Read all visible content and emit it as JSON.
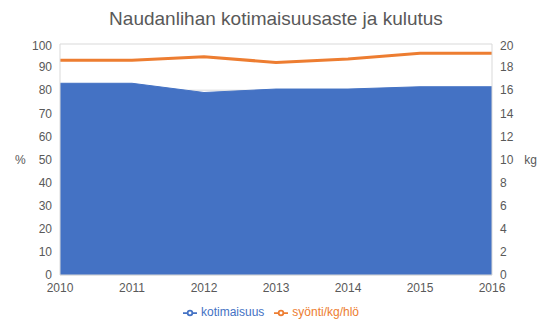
{
  "chart_data": {
    "type": "line",
    "title": "Naudanlihan kotimaisuusaste ja kulutus",
    "categories": [
      "2010",
      "2011",
      "2012",
      "2013",
      "2014",
      "2015",
      "2016"
    ],
    "y_label": "%",
    "y2_label": "kg",
    "ylim": [
      0,
      100
    ],
    "yticks": [
      0,
      10,
      20,
      30,
      40,
      50,
      60,
      70,
      80,
      90,
      100
    ],
    "y2lim": [
      0,
      20
    ],
    "y2ticks": [
      0,
      2,
      4,
      6,
      8,
      10,
      12,
      14,
      16,
      18,
      20
    ],
    "grid": true,
    "legend": "bottom",
    "series": [
      {
        "name": "kotimaisuus",
        "type": "area",
        "color": "#4472c4",
        "values": [
          83,
          83,
          79,
          80.5,
          80.5,
          81.5,
          81.5
        ]
      },
      {
        "name": "syönti/kg/hlö",
        "type": "line",
        "axis": "y2",
        "color": "#ed7d31",
        "values": [
          18.6,
          18.6,
          18.9,
          18.4,
          18.7,
          19.2,
          19.2
        ]
      }
    ]
  }
}
